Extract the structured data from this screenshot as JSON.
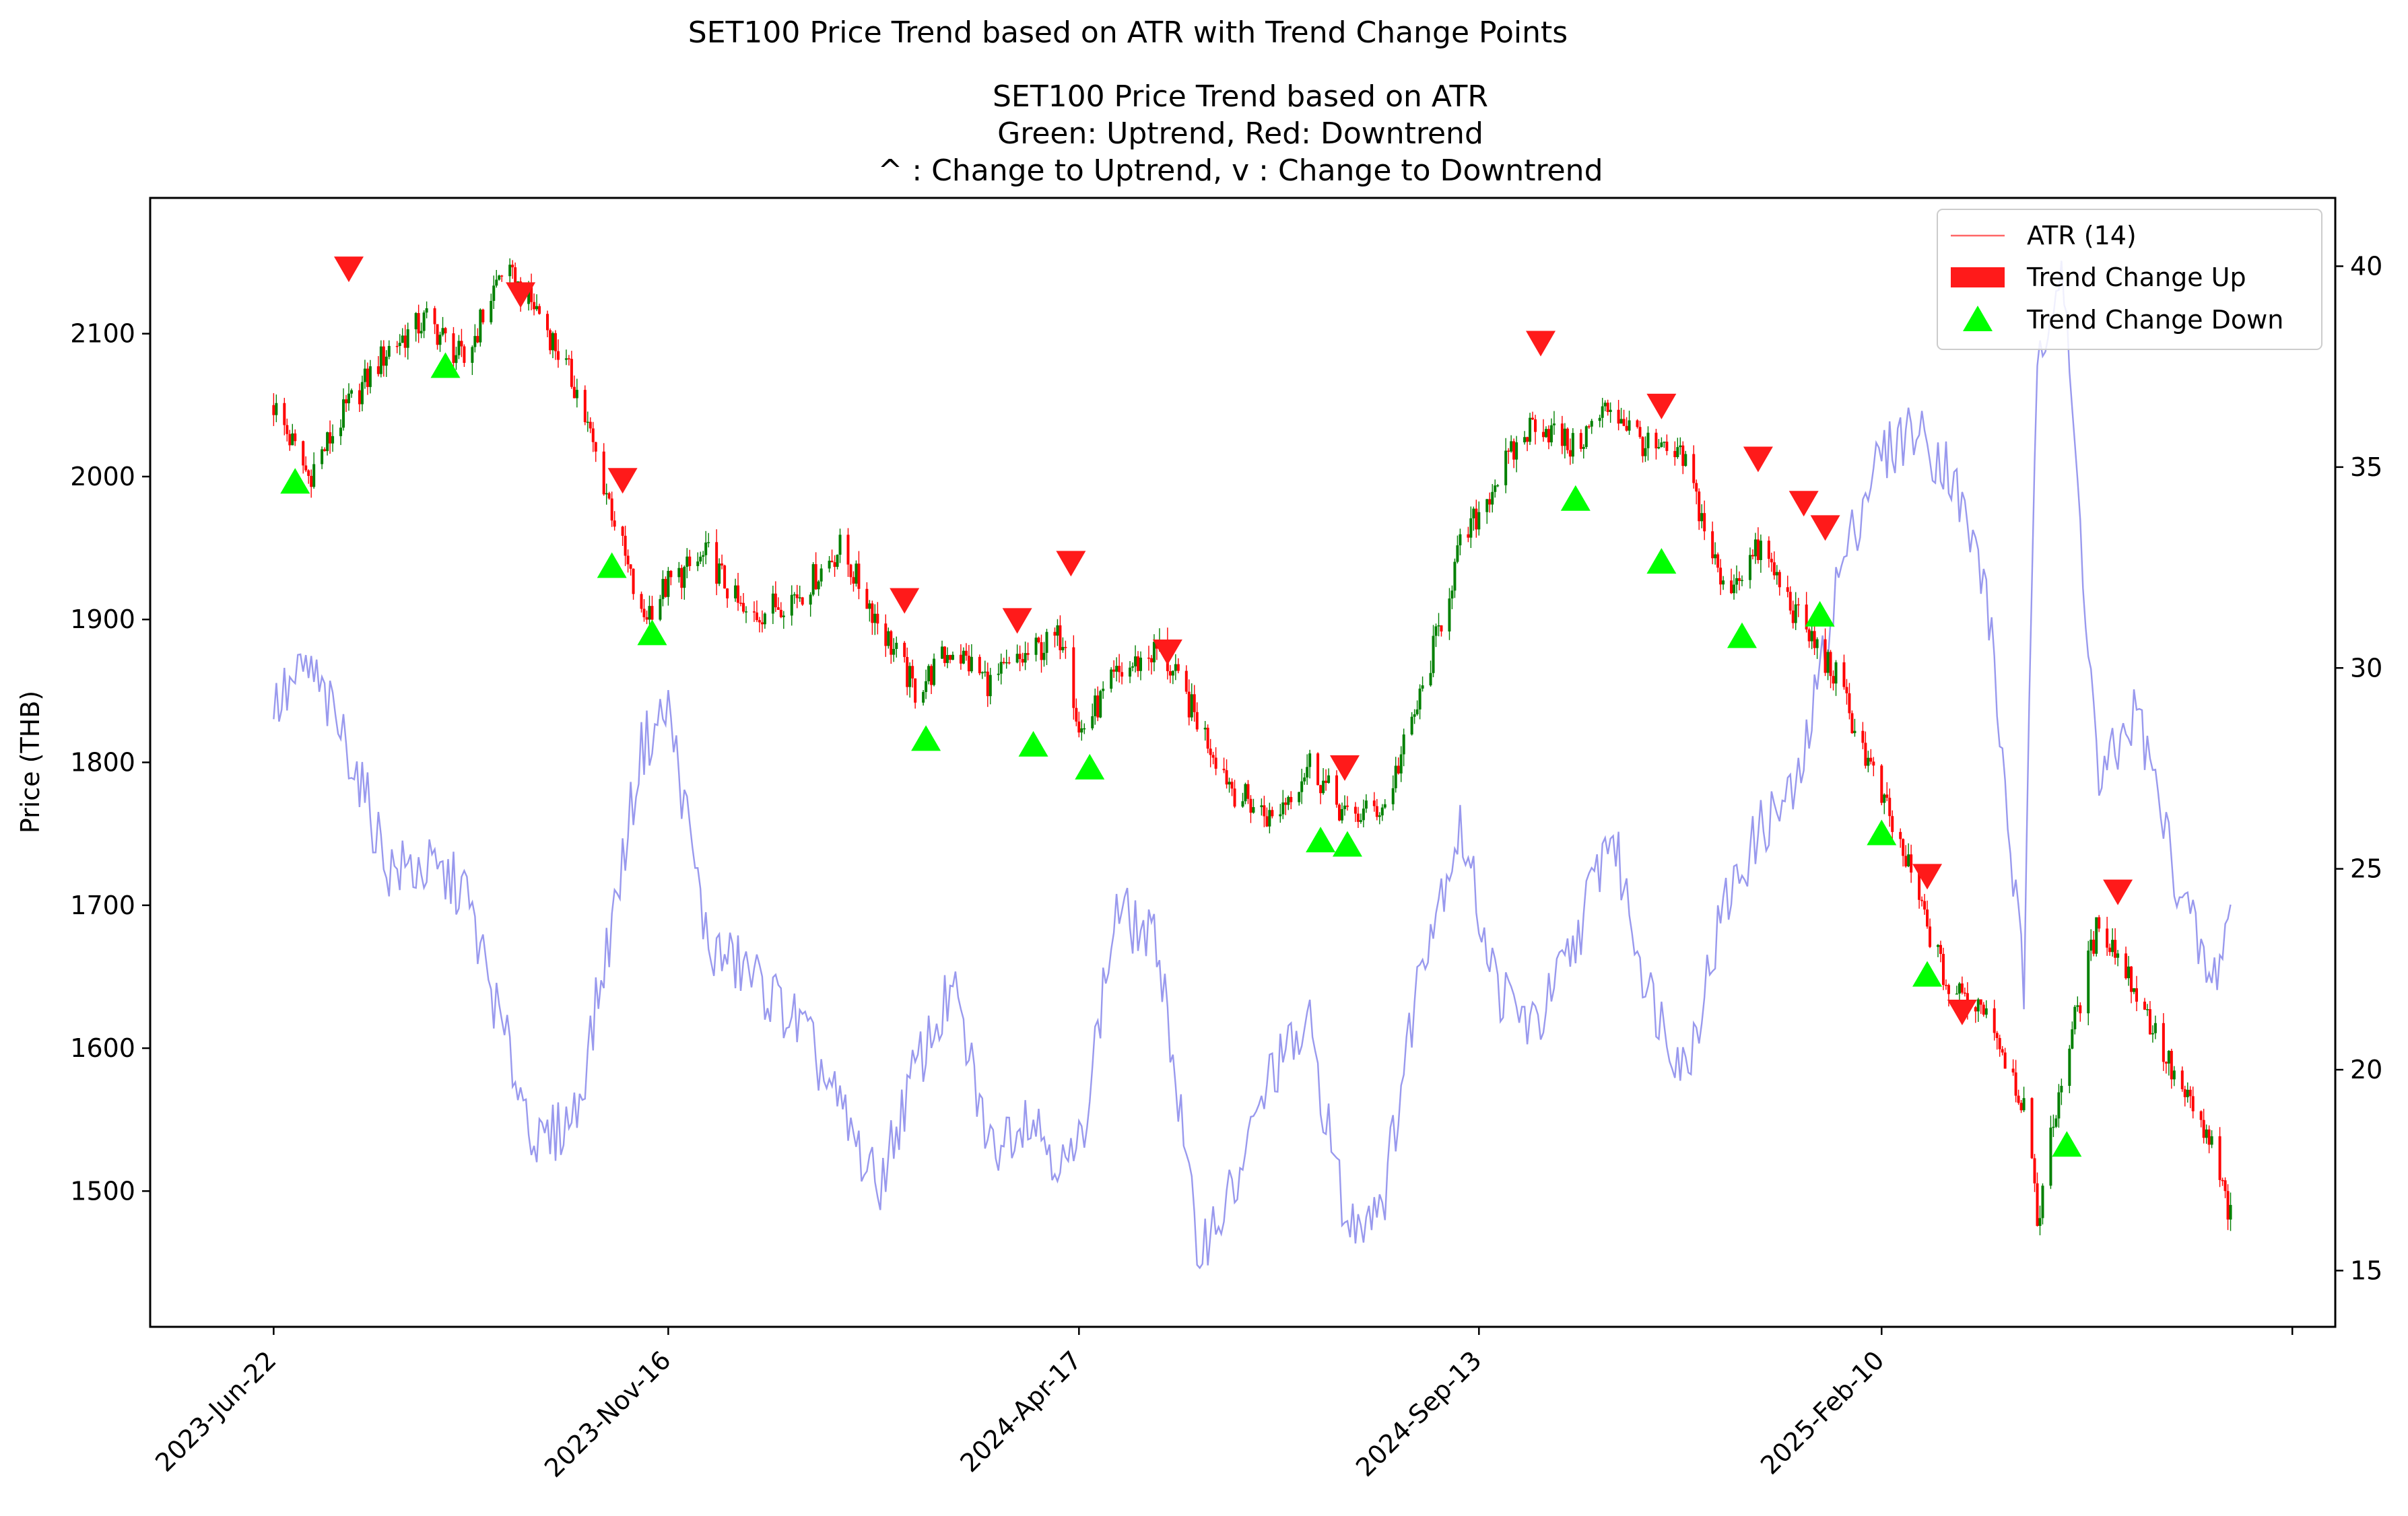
{
  "figure": {
    "suptitle": "SET100 Price Trend based on ATR with Trend Change Points",
    "title_lines": [
      "SET100 Price Trend based on ATR",
      "Green: Uptrend, Red: Downtrend",
      "^ : Change to Uptrend, v : Change to Downtrend"
    ]
  },
  "colors": {
    "up": "#008000",
    "down": "#ff0000",
    "atr": "#9999ee",
    "marker_up": "#00ff00",
    "marker_down": "#ff1a1a"
  },
  "chart_data": {
    "type": "line",
    "ylabel": "Price (THB)",
    "xlim": [
      "2023-May-07",
      "2025-Jul-29"
    ],
    "ylim": [
      1405,
      2195
    ],
    "y2lim": [
      13.6,
      41.7
    ],
    "x_ticks": [
      "2023-Jun-22",
      "2023-Nov-16",
      "2024-Apr-17",
      "2024-Sep-13",
      "2025-Feb-10"
    ],
    "x_tick_dates": [
      "2023-06-22",
      "2023-11-16",
      "2024-04-17",
      "2024-09-13",
      "2025-02-10"
    ],
    "y_ticks": [
      1500,
      1600,
      1700,
      1800,
      1900,
      2000,
      2100
    ],
    "y2_ticks": [
      15,
      20,
      25,
      30,
      35,
      40
    ],
    "legend": {
      "position": "upper right",
      "entries": [
        "ATR (14)",
        "Trend Change Up",
        "Trend Change Down"
      ]
    },
    "price_close": [
      [
        "2023-06-22",
        2050
      ],
      [
        "2023-07-05",
        2000
      ],
      [
        "2023-07-20",
        2050
      ],
      [
        "2023-08-04",
        2090
      ],
      [
        "2023-08-18",
        2110
      ],
      [
        "2023-09-01",
        2080
      ],
      [
        "2023-09-15",
        2145
      ],
      [
        "2023-09-29",
        2115
      ],
      [
        "2023-10-13",
        2060
      ],
      [
        "2023-10-27",
        1970
      ],
      [
        "2023-11-06",
        1900
      ],
      [
        "2023-11-16",
        1925
      ],
      [
        "2023-12-01",
        1945
      ],
      [
        "2023-12-15",
        1900
      ],
      [
        "2024-01-05",
        1920
      ],
      [
        "2024-01-19",
        1950
      ],
      [
        "2024-02-02",
        1900
      ],
      [
        "2024-02-16",
        1850
      ],
      [
        "2024-03-01",
        1880
      ],
      [
        "2024-03-15",
        1855
      ],
      [
        "2024-03-29",
        1875
      ],
      [
        "2024-04-12",
        1890
      ],
      [
        "2024-04-17",
        1820
      ],
      [
        "2024-05-01",
        1860
      ],
      [
        "2024-05-17",
        1880
      ],
      [
        "2024-05-31",
        1830
      ],
      [
        "2024-06-14",
        1780
      ],
      [
        "2024-06-28",
        1760
      ],
      [
        "2024-07-12",
        1800
      ],
      [
        "2024-07-26",
        1760
      ],
      [
        "2024-08-09",
        1770
      ],
      [
        "2024-08-23",
        1850
      ],
      [
        "2024-09-06",
        1950
      ],
      [
        "2024-09-20",
        2000
      ],
      [
        "2024-10-04",
        2040
      ],
      [
        "2024-10-18",
        2020
      ],
      [
        "2024-11-01",
        2050
      ],
      [
        "2024-11-15",
        2020
      ],
      [
        "2024-11-29",
        2010
      ],
      [
        "2024-12-13",
        1920
      ],
      [
        "2024-12-27",
        1950
      ],
      [
        "2025-01-10",
        1900
      ],
      [
        "2025-01-24",
        1860
      ],
      [
        "2025-02-07",
        1790
      ],
      [
        "2025-02-21",
        1720
      ],
      [
        "2025-03-07",
        1640
      ],
      [
        "2025-03-21",
        1630
      ],
      [
        "2025-04-04",
        1560
      ],
      [
        "2025-04-09",
        1480
      ],
      [
        "2025-04-18",
        1580
      ],
      [
        "2025-05-02",
        1690
      ],
      [
        "2025-05-16",
        1640
      ],
      [
        "2025-05-30",
        1580
      ],
      [
        "2025-06-13",
        1530
      ],
      [
        "2025-06-20",
        1480
      ]
    ],
    "atr_14": [
      [
        "2023-06-22",
        29
      ],
      [
        "2023-07-05",
        30
      ],
      [
        "2023-07-20",
        28
      ],
      [
        "2023-08-04",
        25
      ],
      [
        "2023-08-18",
        25
      ],
      [
        "2023-09-01",
        24.5
      ],
      [
        "2023-09-15",
        21
      ],
      [
        "2023-09-29",
        18
      ],
      [
        "2023-10-13",
        19
      ],
      [
        "2023-10-27",
        24
      ],
      [
        "2023-11-06",
        28
      ],
      [
        "2023-11-16",
        29
      ],
      [
        "2023-12-01",
        23
      ],
      [
        "2023-12-15",
        22.5
      ],
      [
        "2024-01-05",
        21
      ],
      [
        "2024-01-19",
        19
      ],
      [
        "2024-02-02",
        17
      ],
      [
        "2024-02-16",
        20
      ],
      [
        "2024-03-01",
        22
      ],
      [
        "2024-03-15",
        18
      ],
      [
        "2024-03-29",
        19
      ],
      [
        "2024-04-12",
        17.5
      ],
      [
        "2024-04-17",
        18
      ],
      [
        "2024-05-01",
        24
      ],
      [
        "2024-05-17",
        23
      ],
      [
        "2024-05-31",
        15.5
      ],
      [
        "2024-06-14",
        17
      ],
      [
        "2024-06-28",
        20
      ],
      [
        "2024-07-12",
        21
      ],
      [
        "2024-07-26",
        16
      ],
      [
        "2024-08-09",
        17
      ],
      [
        "2024-08-23",
        23
      ],
      [
        "2024-09-06",
        26
      ],
      [
        "2024-09-20",
        22
      ],
      [
        "2024-10-04",
        21
      ],
      [
        "2024-10-18",
        23
      ],
      [
        "2024-11-01",
        26
      ],
      [
        "2024-11-15",
        22
      ],
      [
        "2024-11-29",
        20
      ],
      [
        "2024-12-13",
        24
      ],
      [
        "2024-12-27",
        26
      ],
      [
        "2025-01-10",
        27
      ],
      [
        "2025-01-24",
        32
      ],
      [
        "2025-02-07",
        35
      ],
      [
        "2025-02-21",
        36
      ],
      [
        "2025-03-07",
        35
      ],
      [
        "2025-03-21",
        32
      ],
      [
        "2025-04-04",
        22
      ],
      [
        "2025-04-09",
        38
      ],
      [
        "2025-04-18",
        40
      ],
      [
        "2025-05-02",
        27
      ],
      [
        "2025-05-16",
        29
      ],
      [
        "2025-05-30",
        25
      ],
      [
        "2025-06-13",
        22
      ],
      [
        "2025-06-20",
        24
      ]
    ],
    "trend_change_down_markers": [
      [
        "2023-07-20",
        2145
      ],
      [
        "2023-09-22",
        2127
      ],
      [
        "2023-10-30",
        1997
      ],
      [
        "2024-02-12",
        1913
      ],
      [
        "2024-03-25",
        1899
      ],
      [
        "2024-04-14",
        1939
      ],
      [
        "2024-05-20",
        1877
      ],
      [
        "2024-07-25",
        1796
      ],
      [
        "2024-10-06",
        2093
      ],
      [
        "2024-11-20",
        2049
      ],
      [
        "2024-12-26",
        2012
      ],
      [
        "2025-01-12",
        1981
      ],
      [
        "2025-01-20",
        1964
      ],
      [
        "2025-02-27",
        1720
      ],
      [
        "2025-03-12",
        1625
      ],
      [
        "2025-05-09",
        1709
      ]
    ],
    "trend_change_up_markers": [
      [
        "2023-06-30",
        1997
      ],
      [
        "2023-08-25",
        2078
      ],
      [
        "2023-10-26",
        1938
      ],
      [
        "2023-11-10",
        1891
      ],
      [
        "2024-02-20",
        1817
      ],
      [
        "2024-03-31",
        1813
      ],
      [
        "2024-04-21",
        1797
      ],
      [
        "2024-07-16",
        1746
      ],
      [
        "2024-07-26",
        1743
      ],
      [
        "2024-10-19",
        1985
      ],
      [
        "2024-11-20",
        1941
      ],
      [
        "2024-12-20",
        1889
      ],
      [
        "2025-01-18",
        1904
      ],
      [
        "2025-02-10",
        1751
      ],
      [
        "2025-02-27",
        1652
      ],
      [
        "2025-04-20",
        1533
      ]
    ]
  }
}
